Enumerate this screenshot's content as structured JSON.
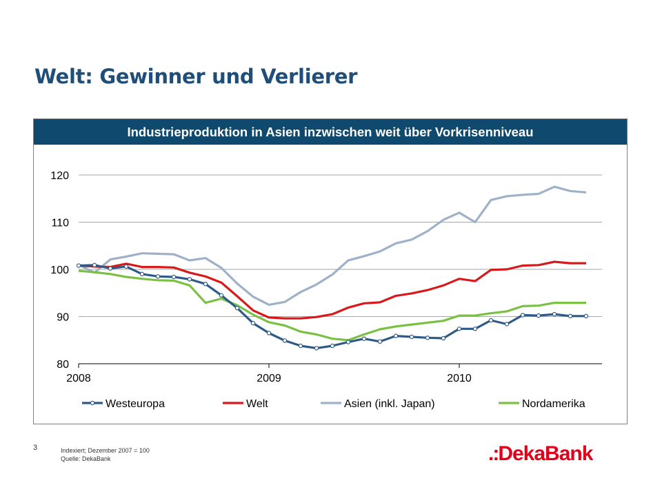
{
  "slide": {
    "title": "Welt: Gewinner und Verlierer",
    "page_number": "3",
    "footnote_line1": "Indexiert; Dezember 2007 = 100",
    "footnote_line2": "Quelle: DekaBank",
    "logo_text": "DekaBank",
    "logo_prefix": ".:"
  },
  "chart_header": "Industrieproduktion in Asien inzwischen weit über Vorkrisenniveau",
  "chart_data": {
    "type": "line",
    "title": "Industrieproduktion in Asien inzwischen weit über Vorkrisenniveau",
    "xlabel": "",
    "ylabel": "",
    "ylim": [
      80,
      120
    ],
    "yticks": [
      80,
      90,
      100,
      110,
      120
    ],
    "x_tick_labels": [
      {
        "label": "2008",
        "month_index": 0
      },
      {
        "label": "2009",
        "month_index": 12
      },
      {
        "label": "2010",
        "month_index": 24
      }
    ],
    "x_range_months": [
      0,
      33
    ],
    "grid": true,
    "legend_position": "bottom",
    "series": [
      {
        "name": "Westeuropa",
        "color": "#2e5a8a",
        "marker": "circle",
        "x": [
          0,
          1,
          2,
          3,
          4,
          5,
          6,
          7,
          8,
          9,
          10,
          11,
          12,
          13,
          14,
          15,
          16,
          17,
          18,
          19,
          20,
          21,
          22,
          23,
          24,
          25,
          26,
          27,
          28,
          29,
          30,
          31,
          32
        ],
        "values": [
          100.8,
          100.9,
          100.2,
          100.6,
          99.0,
          98.5,
          98.4,
          97.9,
          96.9,
          94.5,
          91.8,
          88.6,
          86.5,
          84.9,
          83.8,
          83.3,
          83.8,
          84.6,
          85.3,
          84.7,
          85.9,
          85.7,
          85.5,
          85.4,
          87.4,
          87.4,
          89.2,
          88.4,
          90.3,
          90.2,
          90.5,
          90.1,
          90.1
        ]
      },
      {
        "name": "Welt",
        "color": "#d7191c",
        "marker": "none",
        "x": [
          0,
          1,
          2,
          3,
          4,
          5,
          6,
          7,
          8,
          9,
          10,
          11,
          12,
          13,
          14,
          15,
          16,
          17,
          18,
          19,
          20,
          21,
          22,
          23,
          24,
          25,
          26,
          27,
          28,
          29,
          30,
          31,
          32
        ],
        "values": [
          100.8,
          100.6,
          100.5,
          101.2,
          100.5,
          100.5,
          100.4,
          99.3,
          98.5,
          97.2,
          94.3,
          91.3,
          89.8,
          89.6,
          89.6,
          89.9,
          90.5,
          91.9,
          92.8,
          93.0,
          94.4,
          94.9,
          95.6,
          96.6,
          98.0,
          97.5,
          99.9,
          100.0,
          100.8,
          100.9,
          101.6,
          101.3,
          101.3
        ]
      },
      {
        "name": "Asien (inkl. Japan)",
        "color": "#9fb0c9",
        "marker": "none",
        "x": [
          0,
          1,
          2,
          3,
          4,
          5,
          6,
          7,
          8,
          9,
          10,
          11,
          12,
          13,
          14,
          15,
          16,
          17,
          18,
          19,
          20,
          21,
          22,
          23,
          24,
          25,
          26,
          27,
          28,
          29,
          30,
          31,
          32
        ],
        "values": [
          101.0,
          99.3,
          102.1,
          102.7,
          103.4,
          103.3,
          103.2,
          101.9,
          102.4,
          100.3,
          97.0,
          94.2,
          92.5,
          93.1,
          95.2,
          96.8,
          98.9,
          101.9,
          102.8,
          103.8,
          105.5,
          106.3,
          108.1,
          110.5,
          112.0,
          110.0,
          114.7,
          115.5,
          115.8,
          116.0,
          117.5,
          116.6,
          116.3
        ]
      },
      {
        "name": "Nordamerika",
        "color": "#7ac143",
        "marker": "none",
        "x": [
          0,
          1,
          2,
          3,
          4,
          5,
          6,
          7,
          8,
          9,
          10,
          11,
          12,
          13,
          14,
          15,
          16,
          17,
          18,
          19,
          20,
          21,
          22,
          23,
          24,
          25,
          26,
          27,
          28,
          29,
          30,
          31,
          32
        ],
        "values": [
          99.7,
          99.4,
          99.0,
          98.4,
          98.0,
          97.7,
          97.6,
          96.6,
          92.9,
          93.8,
          92.4,
          90.4,
          88.8,
          88.1,
          86.8,
          86.2,
          85.3,
          85.0,
          86.2,
          87.3,
          87.9,
          88.3,
          88.7,
          89.1,
          90.2,
          90.2,
          90.7,
          91.1,
          92.2,
          92.3,
          92.9,
          92.9,
          92.9
        ]
      }
    ]
  }
}
